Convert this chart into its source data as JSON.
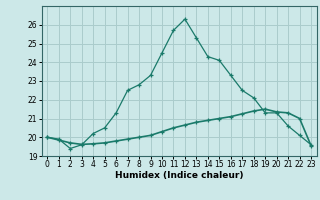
{
  "xlabel": "Humidex (Indice chaleur)",
  "ylabel": "",
  "background_color": "#cce8e8",
  "grid_color": "#aacccc",
  "line_color": "#1a7a6a",
  "x_values": [
    0,
    1,
    2,
    3,
    4,
    5,
    6,
    7,
    8,
    9,
    10,
    11,
    12,
    13,
    14,
    15,
    16,
    17,
    18,
    19,
    20,
    21,
    22,
    23
  ],
  "curve1_y": [
    20.0,
    19.9,
    19.4,
    19.6,
    20.2,
    20.5,
    21.3,
    22.5,
    22.8,
    23.3,
    24.5,
    25.7,
    26.3,
    25.3,
    24.3,
    24.1,
    23.3,
    22.5,
    22.1,
    21.3,
    21.3,
    20.6,
    20.1,
    19.6
  ],
  "curve2_y": [
    20.0,
    19.85,
    19.7,
    19.62,
    19.65,
    19.7,
    19.8,
    19.9,
    20.0,
    20.1,
    20.3,
    20.5,
    20.65,
    20.8,
    20.9,
    21.0,
    21.1,
    21.25,
    21.4,
    21.5,
    21.35,
    21.3,
    21.0,
    19.55
  ],
  "ylim": [
    19,
    27
  ],
  "xlim": [
    -0.5,
    23.5
  ],
  "yticks": [
    19,
    20,
    21,
    22,
    23,
    24,
    25,
    26
  ],
  "xticks": [
    0,
    1,
    2,
    3,
    4,
    5,
    6,
    7,
    8,
    9,
    10,
    11,
    12,
    13,
    14,
    15,
    16,
    17,
    18,
    19,
    20,
    21,
    22,
    23
  ]
}
